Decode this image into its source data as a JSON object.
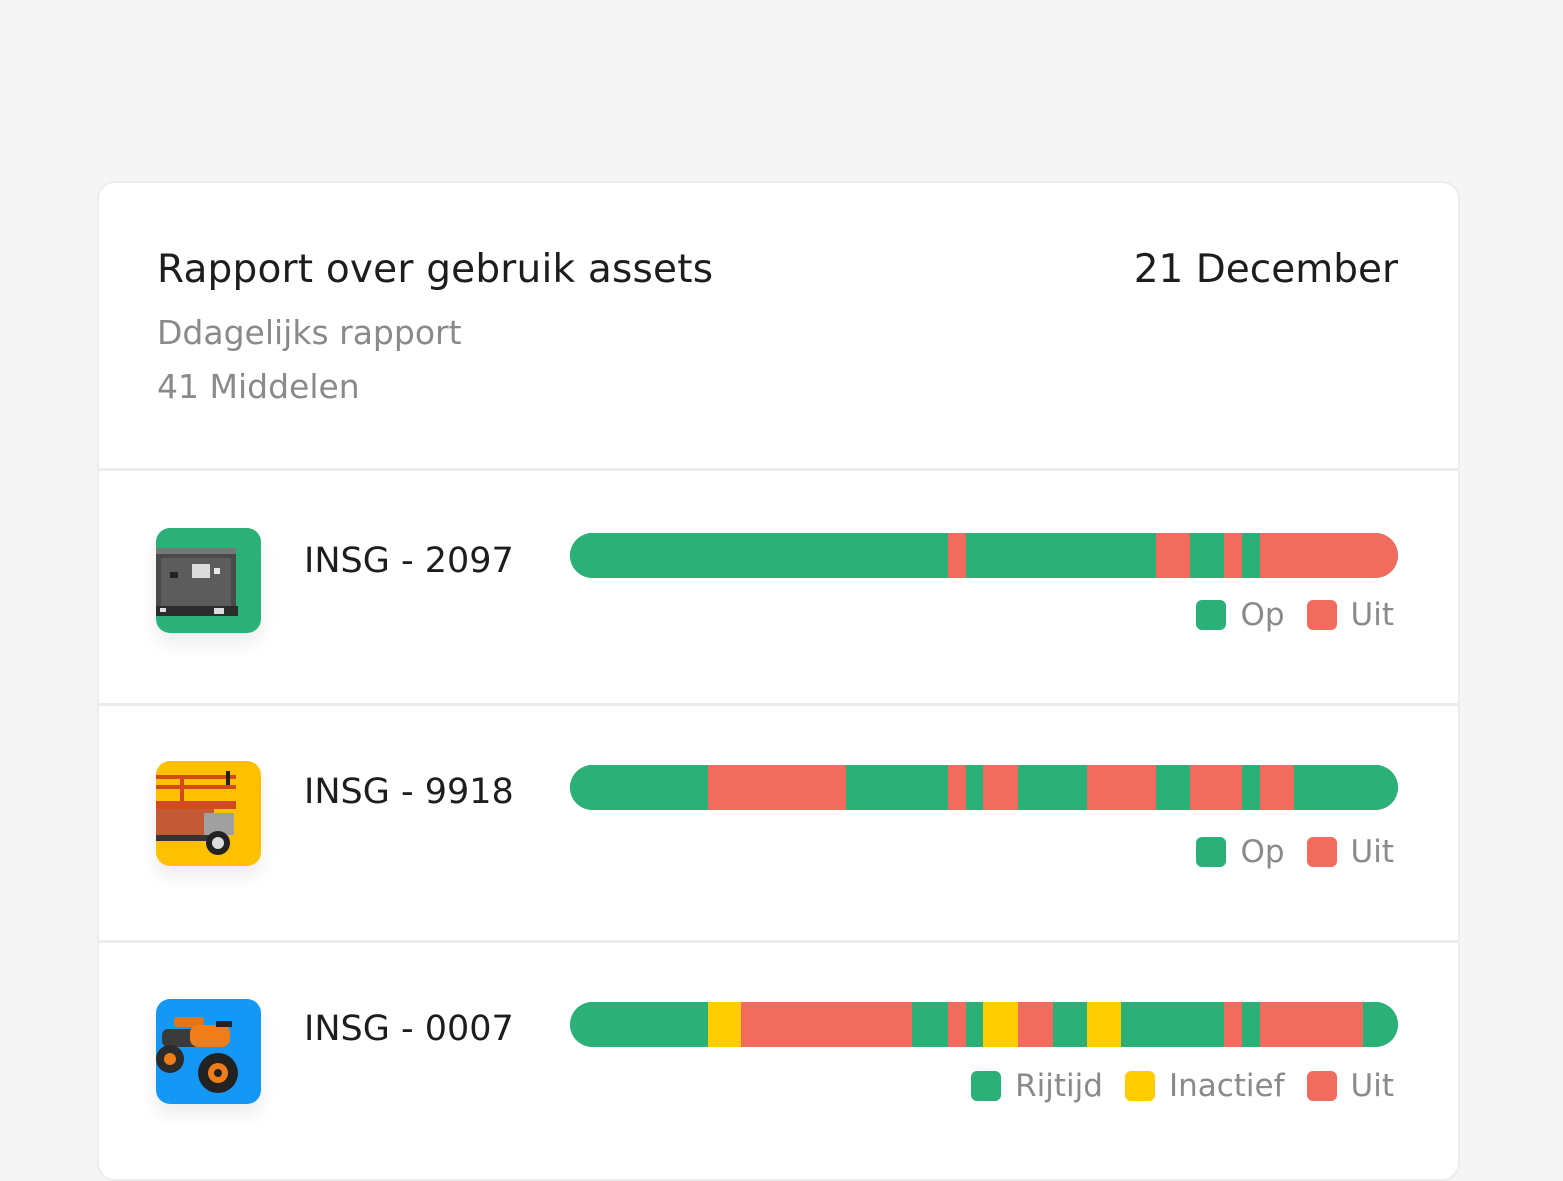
{
  "colors": {
    "on": "#2bb177",
    "off": "#f26b5f",
    "idle": "#ffcc00",
    "generator_bg": "#2bb177",
    "lift_bg": "#ffc000",
    "quad_bg": "#1597f5"
  },
  "report": {
    "title": "Rapport over gebruik assets",
    "date": "21 December",
    "subtitle": "Ddagelijks rapport",
    "count": "41 Middelen"
  },
  "assets": [
    {
      "name": "INSG - 2097",
      "thumbnail_icon": "generator-icon",
      "legend": [
        {
          "label": "Op",
          "color": "#2bb177"
        },
        {
          "label": "Uit",
          "color": "#f26b5f"
        }
      ],
      "segments": [
        {
          "state": "on",
          "start": 0.0,
          "end": 0.457
        },
        {
          "state": "off",
          "start": 0.457,
          "end": 0.478
        },
        {
          "state": "on",
          "start": 0.478,
          "end": 0.708
        },
        {
          "state": "off",
          "start": 0.708,
          "end": 0.749
        },
        {
          "state": "on",
          "start": 0.749,
          "end": 0.79
        },
        {
          "state": "off",
          "start": 0.79,
          "end": 0.812
        },
        {
          "state": "on",
          "start": 0.812,
          "end": 0.833
        },
        {
          "state": "off",
          "start": 0.833,
          "end": 1.0
        }
      ]
    },
    {
      "name": "INSG - 9918",
      "thumbnail_icon": "scissor-lift-icon",
      "legend": [
        {
          "label": "Op",
          "color": "#2bb177"
        },
        {
          "label": "Uit",
          "color": "#f26b5f"
        }
      ],
      "segments": [
        {
          "state": "on",
          "start": 0.0,
          "end": 0.167
        },
        {
          "state": "off",
          "start": 0.167,
          "end": 0.333
        },
        {
          "state": "on",
          "start": 0.333,
          "end": 0.457
        },
        {
          "state": "off",
          "start": 0.457,
          "end": 0.478
        },
        {
          "state": "on",
          "start": 0.478,
          "end": 0.499
        },
        {
          "state": "off",
          "start": 0.499,
          "end": 0.541
        },
        {
          "state": "on",
          "start": 0.541,
          "end": 0.624
        },
        {
          "state": "off",
          "start": 0.624,
          "end": 0.708
        },
        {
          "state": "on",
          "start": 0.708,
          "end": 0.749
        },
        {
          "state": "off",
          "start": 0.749,
          "end": 0.812
        },
        {
          "state": "on",
          "start": 0.812,
          "end": 0.833
        },
        {
          "state": "off",
          "start": 0.833,
          "end": 0.874
        },
        {
          "state": "on",
          "start": 0.874,
          "end": 1.0
        }
      ]
    },
    {
      "name": "INSG - 0007",
      "thumbnail_icon": "quad-bike-icon",
      "legend": [
        {
          "label": "Rijtijd",
          "color": "#2bb177"
        },
        {
          "label": "Inactief",
          "color": "#ffcc00"
        },
        {
          "label": "Uit",
          "color": "#f26b5f"
        }
      ],
      "segments": [
        {
          "state": "on",
          "start": 0.0,
          "end": 0.167
        },
        {
          "state": "idle",
          "start": 0.167,
          "end": 0.206
        },
        {
          "state": "off",
          "start": 0.206,
          "end": 0.413
        },
        {
          "state": "on",
          "start": 0.413,
          "end": 0.457
        },
        {
          "state": "off",
          "start": 0.457,
          "end": 0.478
        },
        {
          "state": "on",
          "start": 0.478,
          "end": 0.499
        },
        {
          "state": "idle",
          "start": 0.499,
          "end": 0.541
        },
        {
          "state": "off",
          "start": 0.541,
          "end": 0.583
        },
        {
          "state": "on",
          "start": 0.583,
          "end": 0.624
        },
        {
          "state": "idle",
          "start": 0.624,
          "end": 0.666
        },
        {
          "state": "on",
          "start": 0.666,
          "end": 0.79
        },
        {
          "state": "off",
          "start": 0.79,
          "end": 0.812
        },
        {
          "state": "on",
          "start": 0.812,
          "end": 0.833
        },
        {
          "state": "off",
          "start": 0.833,
          "end": 0.958
        },
        {
          "state": "on",
          "start": 0.958,
          "end": 1.0
        }
      ]
    }
  ]
}
